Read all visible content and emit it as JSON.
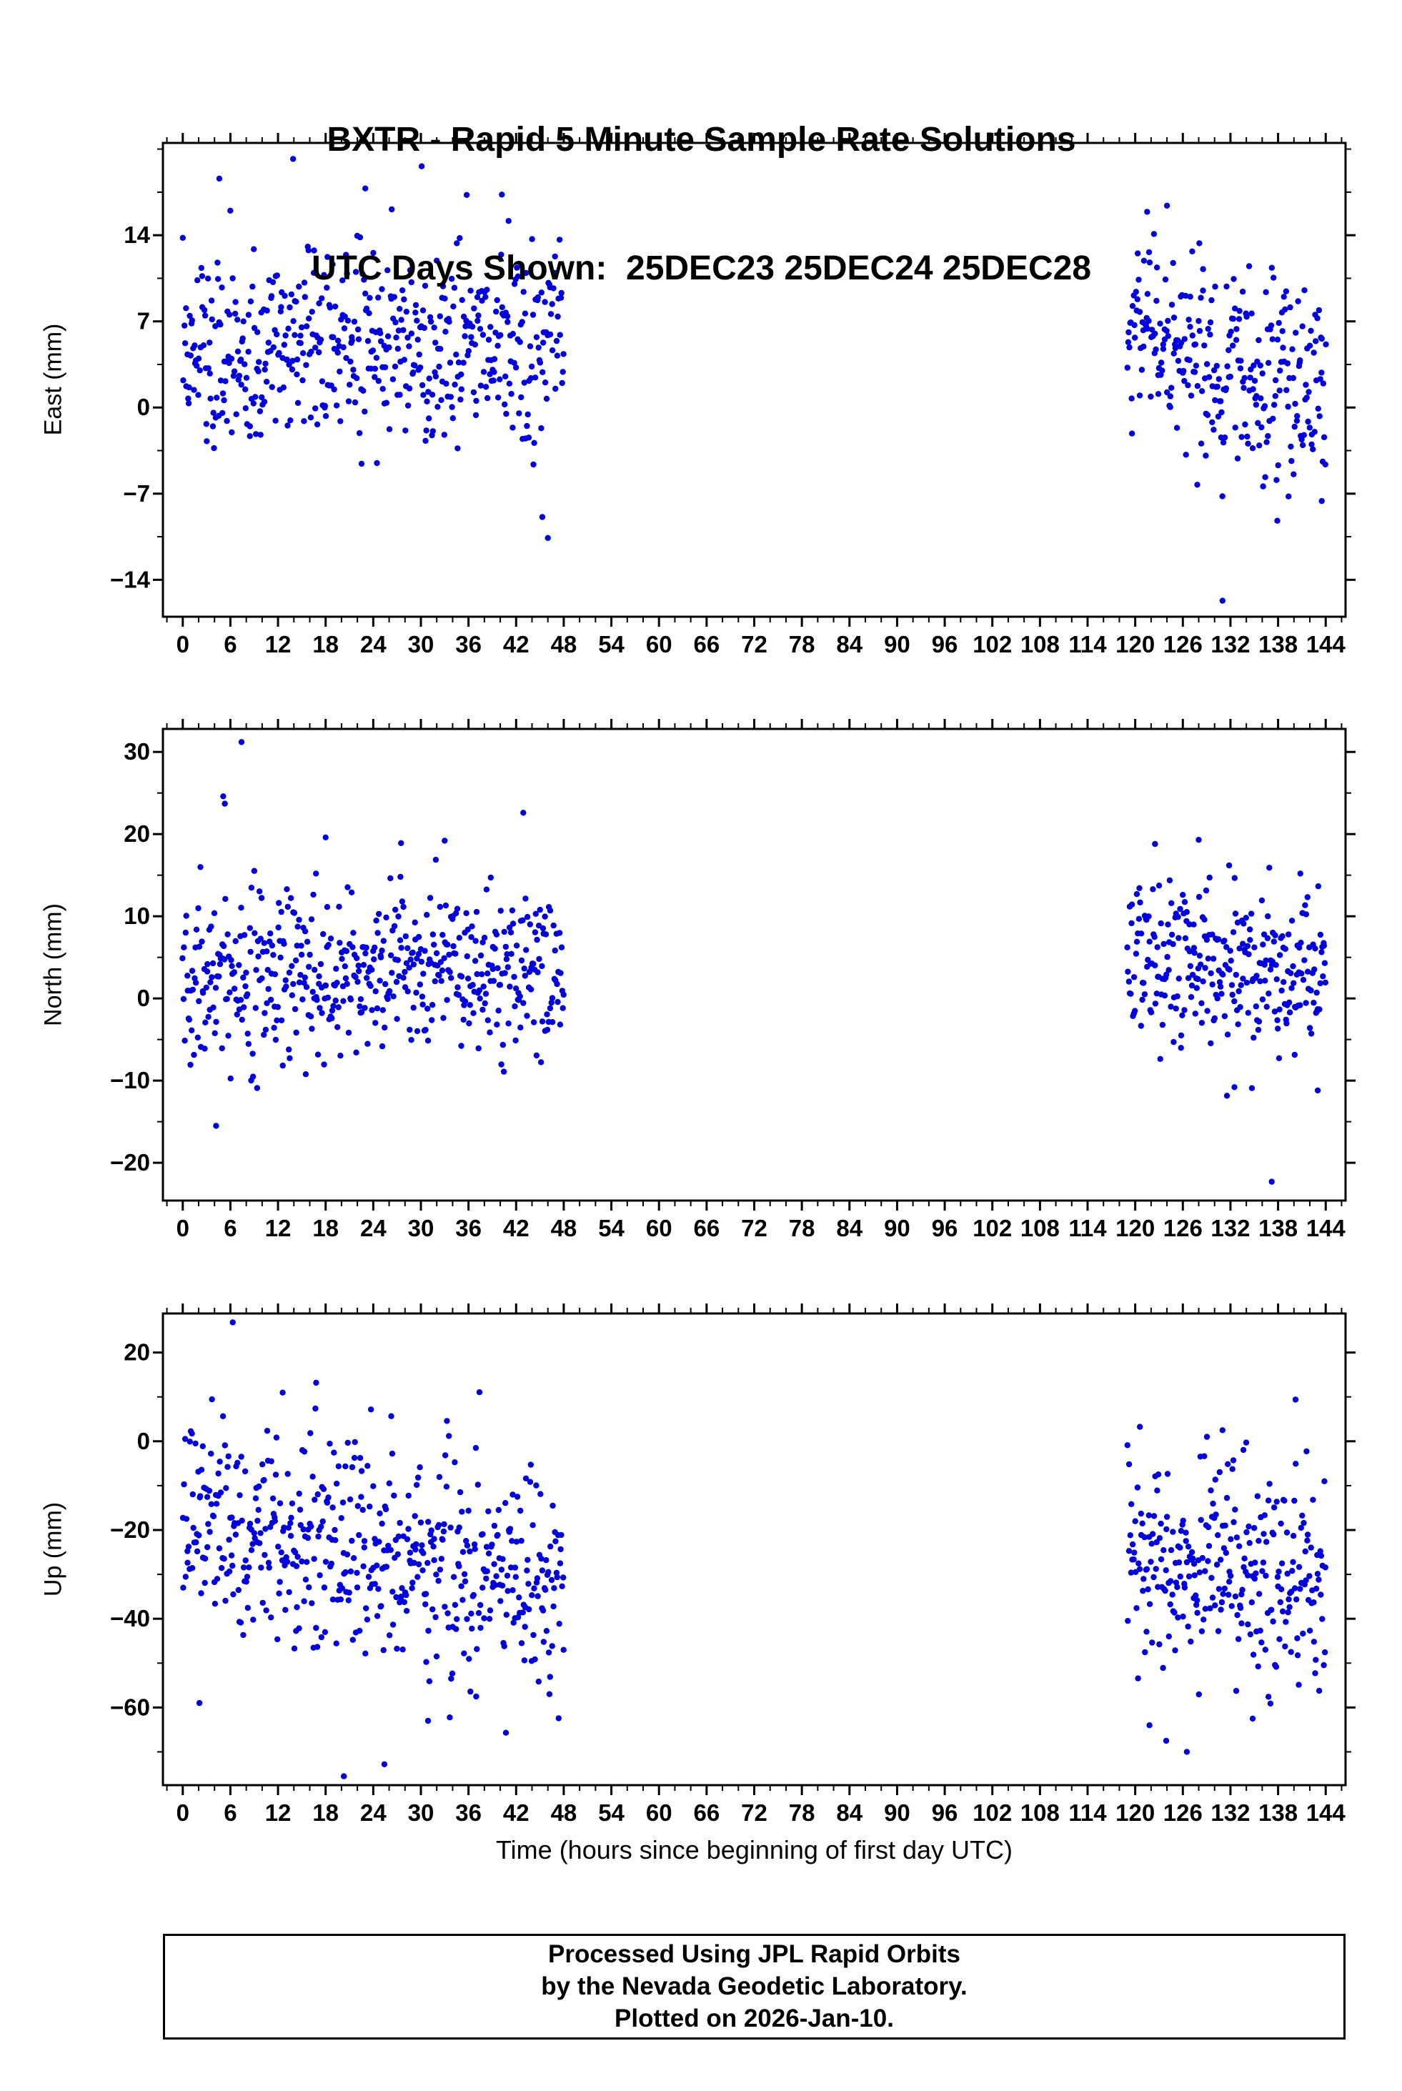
{
  "title": {
    "line1": "BXTR - Rapid 5 Minute Sample Rate Solutions",
    "line2": "UTC Days Shown:  25DEC23 25DEC24 25DEC28"
  },
  "xlabel": "Time (hours since beginning of first day UTC)",
  "footer": {
    "line1": "Processed Using JPL Rapid Orbits",
    "line2": "by the Nevada Geodetic Laboratory.",
    "line3": "Plotted on 2026-Jan-10."
  },
  "colors": {
    "points": "#0000dd",
    "frame": "#000000"
  },
  "seed": 20261,
  "chart_data": [
    {
      "type": "scatter",
      "ylabel": "East (mm)",
      "ylim": [
        -17.0,
        21.5
      ],
      "yticks": [
        -14,
        -7,
        0,
        7,
        14
      ],
      "y_minor_step": 3.5,
      "xlim": [
        -2.5,
        146.5
      ],
      "xticks": [
        0,
        6,
        12,
        18,
        24,
        30,
        36,
        42,
        48,
        54,
        60,
        66,
        72,
        78,
        84,
        90,
        96,
        102,
        108,
        114,
        120,
        126,
        132,
        138,
        144
      ],
      "x_minor_step": 2,
      "grid": false,
      "legend": "none",
      "clusters": [
        {
          "x0": 0,
          "x1": 48,
          "n": 520,
          "mean0": 4.5,
          "mean1": 5.0,
          "sd": 4.2,
          "min": -11,
          "max": 19
        },
        {
          "x0": 119,
          "x1": 144,
          "n": 280,
          "mean0": 6.0,
          "mean1": 0.5,
          "sd": 4.3,
          "min": -13,
          "max": 17
        }
      ],
      "outliers": [
        [
          4.6,
          18.6
        ],
        [
          13.9,
          20.2
        ],
        [
          30.1,
          19.6
        ],
        [
          23.0,
          17.8
        ],
        [
          40.2,
          17.3
        ],
        [
          46.0,
          -10.6
        ],
        [
          45.3,
          -8.9
        ],
        [
          131.0,
          -15.7
        ],
        [
          124.0,
          16.4
        ],
        [
          121.5,
          15.9
        ],
        [
          137.9,
          -9.2
        ],
        [
          143.5,
          -7.6
        ]
      ]
    },
    {
      "type": "scatter",
      "ylabel": "North (mm)",
      "ylim": [
        -24.6,
        32.8
      ],
      "yticks": [
        -20,
        -10,
        0,
        10,
        20,
        30
      ],
      "y_minor_step": 5,
      "xlim": [
        -2.5,
        146.5
      ],
      "xticks": [
        0,
        6,
        12,
        18,
        24,
        30,
        36,
        42,
        48,
        54,
        60,
        66,
        72,
        78,
        84,
        90,
        96,
        102,
        108,
        114,
        120,
        126,
        132,
        138,
        144
      ],
      "x_minor_step": 2,
      "grid": false,
      "legend": "none",
      "clusters": [
        {
          "x0": 0,
          "x1": 48,
          "n": 520,
          "mean0": 2.8,
          "mean1": 3.2,
          "sd": 4.8,
          "min": -13,
          "max": 21
        },
        {
          "x0": 119,
          "x1": 144,
          "n": 280,
          "mean0": 4.2,
          "mean1": 3.8,
          "sd": 5.2,
          "min": -12,
          "max": 19.5
        }
      ],
      "outliers": [
        [
          4.2,
          -15.5
        ],
        [
          5.1,
          24.6
        ],
        [
          5.3,
          23.7
        ],
        [
          7.4,
          31.2
        ],
        [
          42.9,
          22.6
        ],
        [
          18.0,
          19.6
        ],
        [
          27.5,
          18.9
        ],
        [
          33.0,
          19.2
        ],
        [
          137.2,
          -22.3
        ],
        [
          122.5,
          18.8
        ],
        [
          128.0,
          19.3
        ],
        [
          140.8,
          15.2
        ],
        [
          132.5,
          -10.8
        ],
        [
          143.0,
          -11.2
        ]
      ]
    },
    {
      "type": "scatter",
      "ylabel": "Up (mm)",
      "ylim": [
        -77.5,
        28.8
      ],
      "yticks": [
        -60,
        -40,
        -20,
        0,
        20
      ],
      "y_minor_step": 10,
      "xlim": [
        -2.5,
        146.5
      ],
      "xticks": [
        0,
        6,
        12,
        18,
        24,
        30,
        36,
        42,
        48,
        54,
        60,
        66,
        72,
        78,
        84,
        90,
        96,
        102,
        108,
        114,
        120,
        126,
        132,
        138,
        144
      ],
      "x_minor_step": 2,
      "grid": false,
      "legend": "none",
      "clusters": [
        {
          "x0": 0,
          "x1": 48,
          "n": 520,
          "mean0": -16,
          "mean1": -33,
          "sd": 12.5,
          "min": -66,
          "max": 12
        },
        {
          "x0": 119,
          "x1": 144,
          "n": 280,
          "mean0": -25,
          "mean1": -33,
          "sd": 12,
          "min": -62,
          "max": 5
        }
      ],
      "outliers": [
        [
          6.3,
          26.8
        ],
        [
          16.8,
          13.2
        ],
        [
          2.1,
          -59.0
        ],
        [
          20.3,
          -75.5
        ],
        [
          25.4,
          -72.8
        ],
        [
          30.9,
          -63.0
        ],
        [
          46.2,
          -57.0
        ],
        [
          123.9,
          -67.5
        ],
        [
          126.5,
          -70.0
        ],
        [
          121.8,
          -64.0
        ],
        [
          140.2,
          9.4
        ],
        [
          131.0,
          2.5
        ],
        [
          134.8,
          -62.5
        ]
      ]
    }
  ]
}
